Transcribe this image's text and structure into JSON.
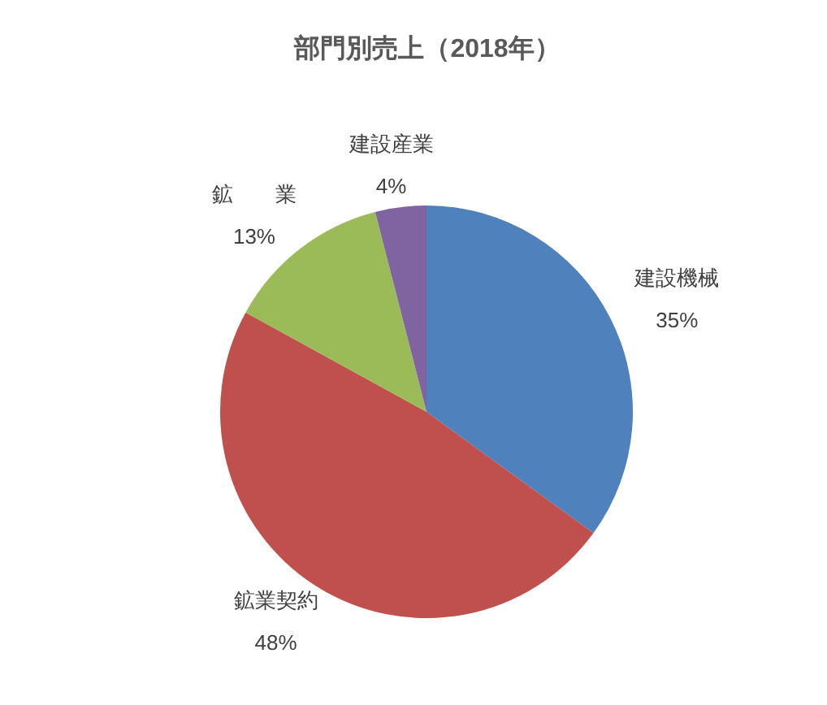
{
  "chart_data": {
    "type": "pie",
    "title": "部門別売上（2018年）",
    "categories": [
      "建設機械",
      "鉱業契約",
      "鉱　　業",
      "建設産業"
    ],
    "values": [
      35,
      48,
      13,
      4
    ],
    "colors": [
      "#4f81bd",
      "#c0504d",
      "#9bbb59",
      "#8064a2"
    ],
    "value_labels": [
      "35%",
      "48%",
      "13%",
      "4%"
    ],
    "legend": false
  }
}
